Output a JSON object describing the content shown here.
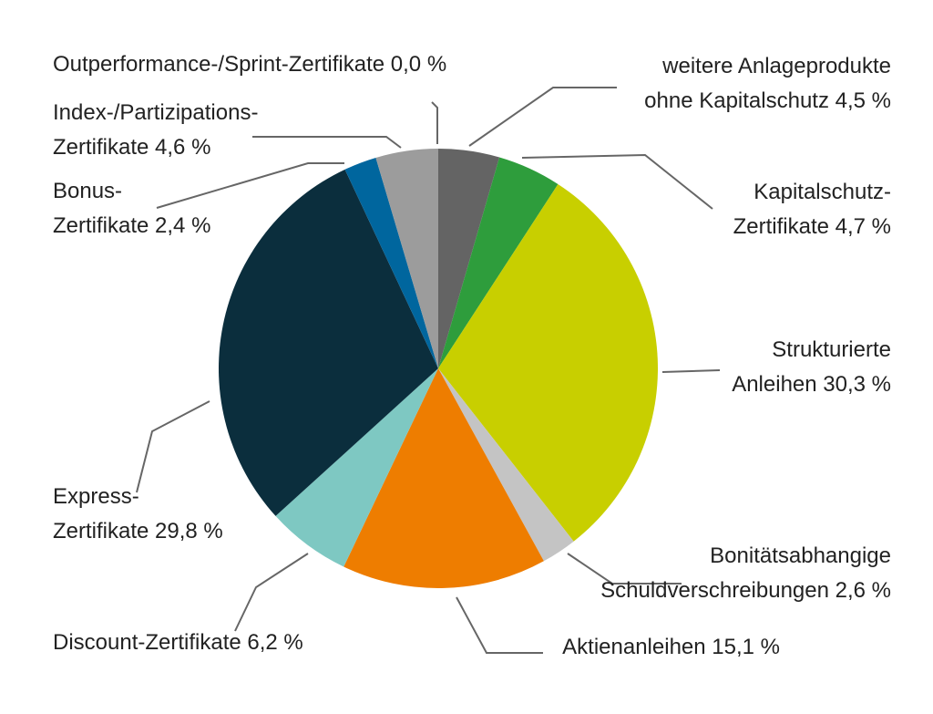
{
  "chart_data": {
    "type": "pie",
    "start_angle_deg": 0,
    "direction": "clockwise",
    "slices": [
      {
        "name": "weitere Anlageprodukte ohne Kapitalschutz",
        "value": 4.5,
        "label": [
          "weitere Anlageprodukte",
          "ohne Kapitalschutz 4,5 %"
        ],
        "color": "#646464"
      },
      {
        "name": "Kapitalschutz-Zertifikate",
        "value": 4.7,
        "label": [
          "Kapitalschutz-",
          "Zertifikate 4,7 %"
        ],
        "color": "#2e9d3c"
      },
      {
        "name": "Strukturierte Anleihen",
        "value": 30.3,
        "label": [
          "Strukturierte",
          "Anleihen 30,3 %"
        ],
        "color": "#c8cf00"
      },
      {
        "name": "Bonitätsabhangige Schuldverschreibungen",
        "value": 2.6,
        "label": [
          "Bonitätsabhangige",
          "Schuldverschreibungen 2,6 %"
        ],
        "color": "#c4c4c4"
      },
      {
        "name": "Aktienanleihen",
        "value": 15.1,
        "label": [
          "Aktienanleihen 15,1 %"
        ],
        "color": "#ee7d00"
      },
      {
        "name": "Discount-Zertifikate",
        "value": 6.2,
        "label": [
          "Discount-Zertifikate 6,2 %"
        ],
        "color": "#7ec8c2"
      },
      {
        "name": "Express-Zertifikate",
        "value": 29.8,
        "label": [
          "Express-",
          "Zertifikate 29,8 %"
        ],
        "color": "#0b2e3d"
      },
      {
        "name": "Bonus-Zertifikate",
        "value": 2.4,
        "label": [
          "Bonus-",
          "Zertifikate 2,4 %"
        ],
        "color": "#00669e"
      },
      {
        "name": "Index-/Partizipations-Zertifikate",
        "value": 4.6,
        "label": [
          "Index-/Partizipations-",
          "Zertifikate 4,6 %"
        ],
        "color": "#9c9c9c"
      },
      {
        "name": "Outperformance-/Sprint-Zertifikate",
        "value": 0.0,
        "label": [
          "Outperformance-/Sprint-Zertifikate 0,0 %"
        ],
        "color": "#9c9c9c"
      }
    ],
    "title": "",
    "legend": "none"
  }
}
